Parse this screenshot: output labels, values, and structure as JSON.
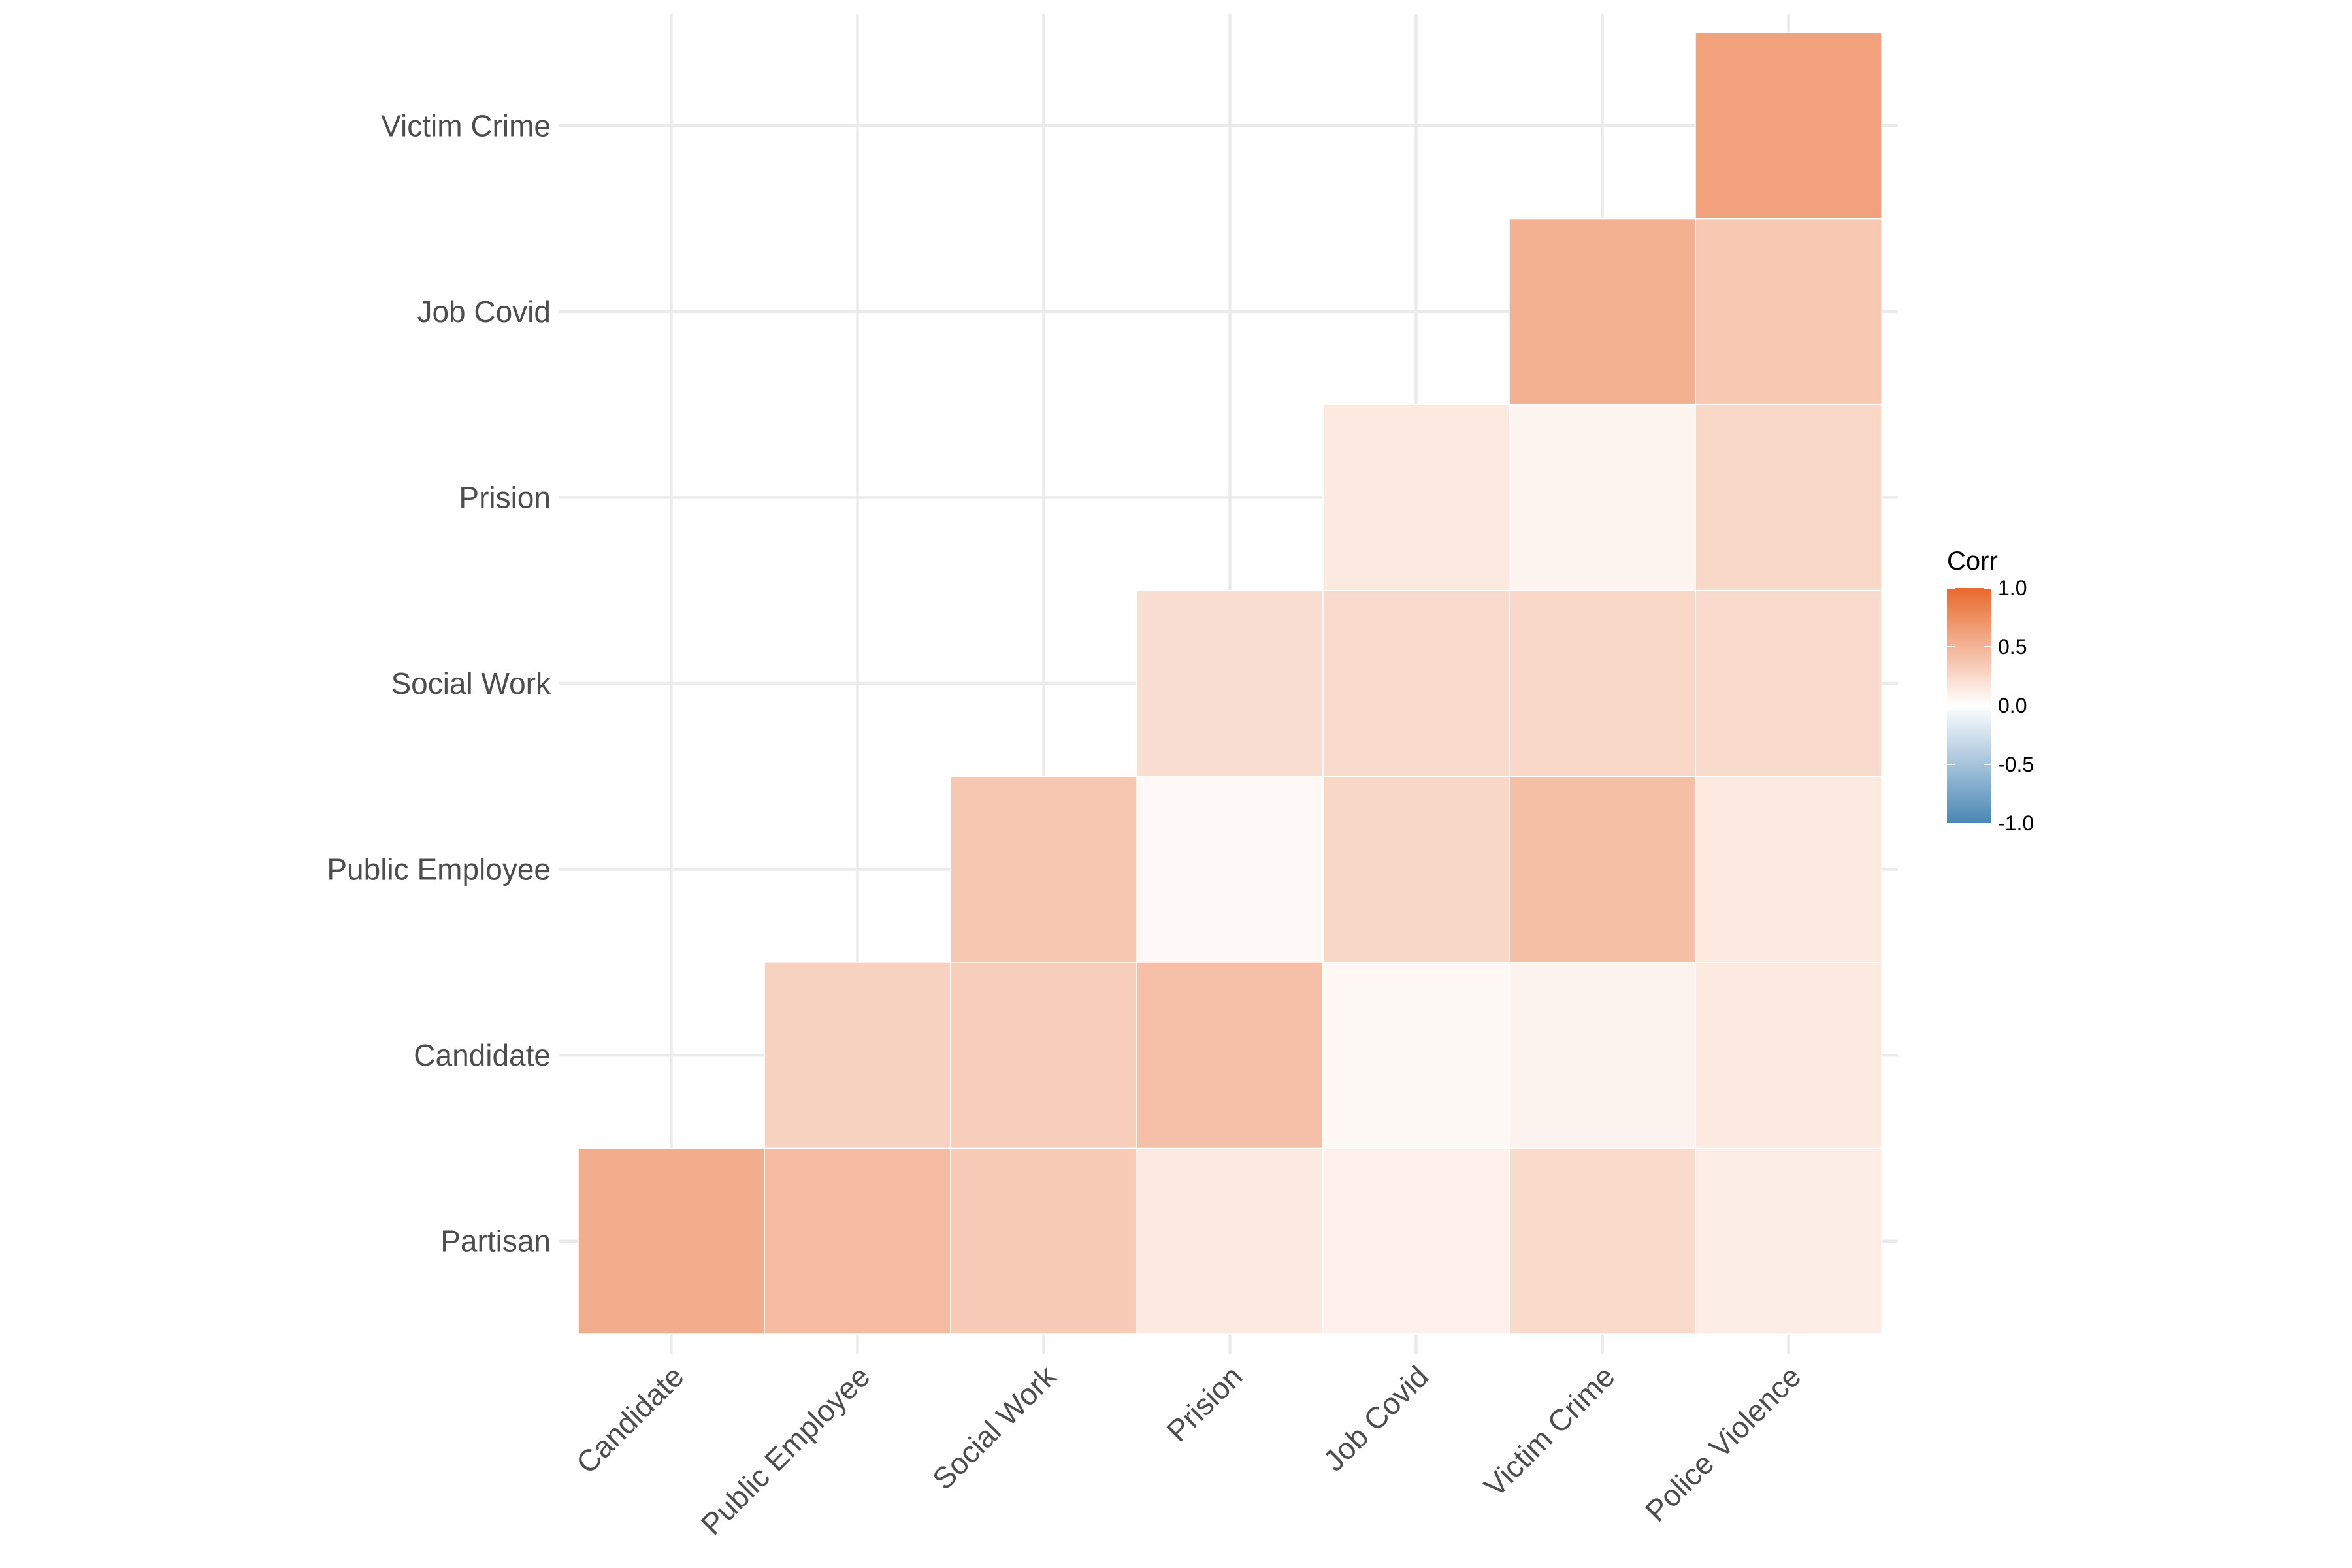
{
  "chart_data": {
    "type": "heatmap",
    "title": "",
    "xlabel": "",
    "ylabel": "",
    "x_categories": [
      "Candidate",
      "Public Employee",
      "Social Work",
      "Prision",
      "Job Covid",
      "Victim Crime",
      "Police Violence"
    ],
    "y_categories": [
      "Partisan",
      "Candidate",
      "Public Employee",
      "Social Work",
      "Prision",
      "Job Covid",
      "Victim Crime"
    ],
    "cells": [
      {
        "x": "Candidate",
        "y": "Partisan",
        "value": 0.55
      },
      {
        "x": "Public Employee",
        "y": "Partisan",
        "value": 0.45
      },
      {
        "x": "Social Work",
        "y": "Partisan",
        "value": 0.35
      },
      {
        "x": "Prision",
        "y": "Partisan",
        "value": 0.14
      },
      {
        "x": "Job Covid",
        "y": "Partisan",
        "value": 0.1
      },
      {
        "x": "Victim Crime",
        "y": "Partisan",
        "value": 0.25
      },
      {
        "x": "Police Violence",
        "y": "Partisan",
        "value": 0.12
      },
      {
        "x": "Public Employee",
        "y": "Candidate",
        "value": 0.3
      },
      {
        "x": "Social Work",
        "y": "Candidate",
        "value": 0.33
      },
      {
        "x": "Prision",
        "y": "Candidate",
        "value": 0.42
      },
      {
        "x": "Job Covid",
        "y": "Candidate",
        "value": 0.05
      },
      {
        "x": "Victim Crime",
        "y": "Candidate",
        "value": 0.08
      },
      {
        "x": "Police Violence",
        "y": "Candidate",
        "value": 0.15
      },
      {
        "x": "Social Work",
        "y": "Public Employee",
        "value": 0.37
      },
      {
        "x": "Prision",
        "y": "Public Employee",
        "value": 0.04
      },
      {
        "x": "Job Covid",
        "y": "Public Employee",
        "value": 0.27
      },
      {
        "x": "Victim Crime",
        "y": "Public Employee",
        "value": 0.43
      },
      {
        "x": "Police Violence",
        "y": "Public Employee",
        "value": 0.15
      },
      {
        "x": "Prision",
        "y": "Social Work",
        "value": 0.22
      },
      {
        "x": "Job Covid",
        "y": "Social Work",
        "value": 0.24
      },
      {
        "x": "Victim Crime",
        "y": "Social Work",
        "value": 0.26
      },
      {
        "x": "Police Violence",
        "y": "Social Work",
        "value": 0.24
      },
      {
        "x": "Job Covid",
        "y": "Prision",
        "value": 0.15
      },
      {
        "x": "Victim Crime",
        "y": "Prision",
        "value": 0.07
      },
      {
        "x": "Police Violence",
        "y": "Prision",
        "value": 0.26
      },
      {
        "x": "Victim Crime",
        "y": "Job Covid",
        "value": 0.52
      },
      {
        "x": "Police Violence",
        "y": "Job Covid",
        "value": 0.36
      },
      {
        "x": "Police Violence",
        "y": "Victim Crime",
        "value": 0.62
      }
    ],
    "legend": {
      "title": "Corr",
      "position": "right",
      "ticks": [
        {
          "value": 1.0,
          "label": "1.0"
        },
        {
          "value": 0.5,
          "label": "0.5"
        },
        {
          "value": 0.0,
          "label": "0.0"
        },
        {
          "value": -0.5,
          "label": "-0.5"
        },
        {
          "value": -1.0,
          "label": "-1.0"
        }
      ]
    },
    "color_scale": {
      "low": "#4a87b5",
      "mid": "#ffffff",
      "high": "#e8692d",
      "limits": [
        -1,
        1
      ]
    },
    "grid": true
  }
}
